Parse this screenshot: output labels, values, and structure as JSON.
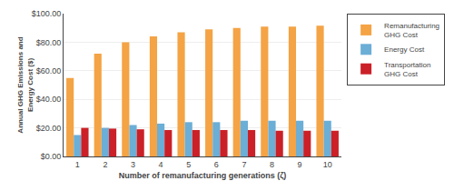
{
  "chart_data": {
    "type": "bar",
    "categories": [
      1,
      2,
      3,
      4,
      5,
      6,
      7,
      8,
      9,
      10
    ],
    "xlabel": "Number of remanufacturing generations (ζ)",
    "ylabel": "Annual GHG Emissions and\nEnergy Cost ($)",
    "series": [
      {
        "name": "Remanufacturing\nGHG Cost",
        "color": "#F4A345",
        "values": [
          55,
          72,
          80,
          84,
          87,
          89,
          90,
          91,
          91,
          91.5
        ]
      },
      {
        "name": "Energy Cost",
        "color": "#6BAED6",
        "values": [
          15,
          20,
          22,
          23,
          24,
          24,
          25,
          25,
          25,
          25
        ]
      },
      {
        "name": "Transportation\nGHG Cost",
        "color": "#CB2027",
        "values": [
          20,
          19.5,
          19,
          18.5,
          18.5,
          18.5,
          18.5,
          18,
          18,
          18
        ]
      }
    ],
    "ylim": [
      0,
      100
    ],
    "yticks": [
      {
        "value": 0,
        "label": "$0.00"
      },
      {
        "value": 20,
        "label": "$20.00"
      },
      {
        "value": 40,
        "label": "$40.00"
      },
      {
        "value": 60,
        "label": "$60.00"
      },
      {
        "value": 80,
        "label": "$80.00"
      },
      {
        "value": 100,
        "label": "$100.00"
      }
    ],
    "grid": true,
    "legend": "right"
  }
}
